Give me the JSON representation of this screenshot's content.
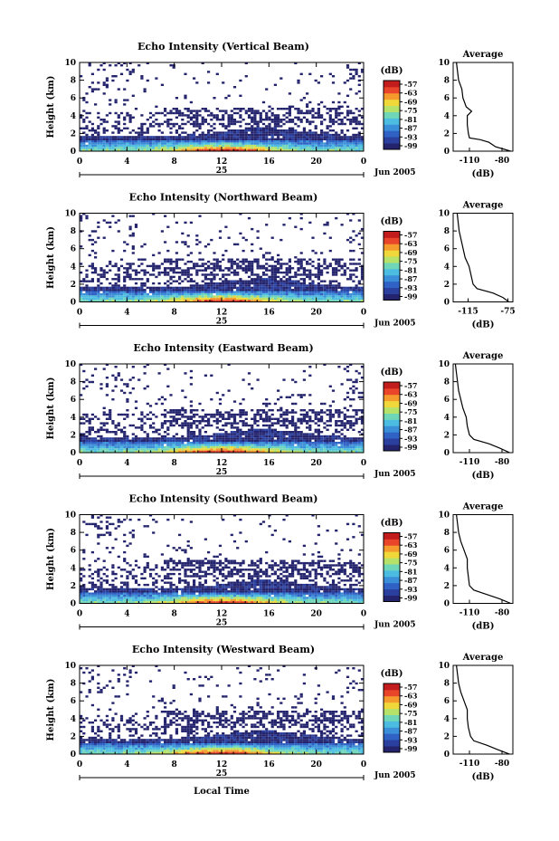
{
  "chart_data": [
    {
      "type": "heatmap",
      "title": "Echo Intensity (Vertical Beam)",
      "xlabel": "",
      "ylabel": "Height (km)",
      "xlim": [
        0,
        24
      ],
      "ylim": [
        0,
        10
      ],
      "x_ticks": [
        "0",
        "4",
        "8",
        "12",
        "16",
        "20",
        "0"
      ],
      "y_ticks": [
        "0",
        "2",
        "4",
        "6",
        "8",
        "10"
      ],
      "date_day": "25",
      "date_month": "Jun 2005",
      "colorbar": {
        "unit": "(dB)",
        "ticks": [
          "-57",
          "-63",
          "-69",
          "-75",
          "-81",
          "-87",
          "-93",
          "-99"
        ]
      },
      "avg": {
        "title": "Average",
        "xlabel": "(dB)",
        "x_ticks": [
          "-110",
          "-80"
        ],
        "xlim": [
          -125,
          -70
        ],
        "heights": [
          0,
          0.5,
          1,
          1.3,
          1.5,
          2,
          3,
          4,
          4.5,
          5,
          6,
          7,
          8,
          9,
          10
        ],
        "values": [
          -72,
          -86,
          -92,
          -100,
          -110,
          -111,
          -112,
          -112,
          -108,
          -113,
          -116,
          -117,
          -120,
          -121,
          -122
        ]
      }
    },
    {
      "type": "heatmap",
      "title": "Echo Intensity (Northward Beam)",
      "xlabel": "",
      "ylabel": "Height (km)",
      "xlim": [
        0,
        24
      ],
      "ylim": [
        0,
        10
      ],
      "x_ticks": [
        "0",
        "4",
        "8",
        "12",
        "16",
        "20",
        "0"
      ],
      "y_ticks": [
        "0",
        "2",
        "4",
        "6",
        "8",
        "10"
      ],
      "date_day": "25",
      "date_month": "Jun 2005",
      "colorbar": {
        "unit": "(dB)",
        "ticks": [
          "-57",
          "-63",
          "-69",
          "-75",
          "-81",
          "-87",
          "-93",
          "-99"
        ]
      },
      "avg": {
        "title": "Average",
        "xlabel": "(dB)",
        "x_ticks": [
          "-115",
          "-75"
        ],
        "xlim": [
          -130,
          -70
        ],
        "heights": [
          0,
          0.5,
          1,
          1.5,
          2,
          3,
          4,
          5,
          6,
          7,
          8,
          9,
          10
        ],
        "values": [
          -74,
          -80,
          -90,
          -106,
          -110,
          -112,
          -114,
          -118,
          -120,
          -122,
          -124,
          -125,
          -126
        ]
      }
    },
    {
      "type": "heatmap",
      "title": "Echo Intensity (Eastward Beam)",
      "xlabel": "",
      "ylabel": "Height (km)",
      "xlim": [
        0,
        24
      ],
      "ylim": [
        0,
        10
      ],
      "x_ticks": [
        "0",
        "4",
        "8",
        "12",
        "16",
        "20",
        "0"
      ],
      "y_ticks": [
        "0",
        "2",
        "4",
        "6",
        "8",
        "10"
      ],
      "date_day": "25",
      "date_month": "Jun 2005",
      "colorbar": {
        "unit": "(dB)",
        "ticks": [
          "-57",
          "-63",
          "-69",
          "-75",
          "-81",
          "-87",
          "-93",
          "-99"
        ]
      },
      "avg": {
        "title": "Average",
        "xlabel": "(dB)",
        "x_ticks": [
          "-110",
          "-80"
        ],
        "xlim": [
          -125,
          -70
        ],
        "heights": [
          0,
          0.5,
          1,
          1.5,
          2,
          3,
          4,
          5,
          6,
          7,
          8,
          9,
          10
        ],
        "values": [
          -73,
          -82,
          -92,
          -106,
          -110,
          -112,
          -113,
          -116,
          -118,
          -120,
          -121,
          -122,
          -123
        ]
      }
    },
    {
      "type": "heatmap",
      "title": "Echo Intensity (Southward Beam)",
      "xlabel": "",
      "ylabel": "Height (km)",
      "xlim": [
        0,
        24
      ],
      "ylim": [
        0,
        10
      ],
      "x_ticks": [
        "0",
        "4",
        "8",
        "12",
        "16",
        "20",
        "0"
      ],
      "y_ticks": [
        "0",
        "2",
        "4",
        "6",
        "8",
        "10"
      ],
      "date_day": "25",
      "date_month": "Jun 2005",
      "colorbar": {
        "unit": "(dB)",
        "ticks": [
          "-57",
          "-63",
          "-69",
          "-75",
          "-81",
          "-87",
          "-93",
          "-99"
        ]
      },
      "avg": {
        "title": "Average",
        "xlabel": "(dB)",
        "x_ticks": [
          "-110",
          "-80"
        ],
        "xlim": [
          -125,
          -70
        ],
        "heights": [
          0,
          0.5,
          1,
          1.5,
          2,
          3,
          4,
          5,
          6,
          7,
          8,
          9,
          10
        ],
        "values": [
          -72,
          -82,
          -94,
          -106,
          -110,
          -111,
          -112,
          -112,
          -115,
          -118,
          -120,
          -121,
          -122
        ]
      }
    },
    {
      "type": "heatmap",
      "title": "Echo Intensity (Westward Beam)",
      "xlabel": "Local Time",
      "ylabel": "Height (km)",
      "xlim": [
        0,
        24
      ],
      "ylim": [
        0,
        10
      ],
      "x_ticks": [
        "0",
        "4",
        "8",
        "12",
        "16",
        "20",
        "0"
      ],
      "y_ticks": [
        "0",
        "2",
        "4",
        "6",
        "8",
        "10"
      ],
      "date_day": "25",
      "date_month": "Jun 2005",
      "colorbar": {
        "unit": "(dB)",
        "ticks": [
          "-57",
          "-63",
          "-69",
          "-75",
          "-81",
          "-87",
          "-93",
          "-99"
        ]
      },
      "avg": {
        "title": "Average",
        "xlabel": "(dB)",
        "x_ticks": [
          "-110",
          "-80"
        ],
        "xlim": [
          -125,
          -70
        ],
        "heights": [
          0,
          0.5,
          1,
          1.5,
          2,
          3,
          4,
          5,
          6,
          7,
          8,
          9,
          10
        ],
        "values": [
          -73,
          -84,
          -94,
          -106,
          -109,
          -111,
          -112,
          -112,
          -115,
          -118,
          -120,
          -121,
          -122
        ]
      }
    }
  ],
  "colormap": [
    "#24246e",
    "#2a3f9e",
    "#2f62c4",
    "#3a8fd8",
    "#4cbde0",
    "#6fd6b8",
    "#b6e26a",
    "#f1d83a",
    "#f59a2c",
    "#e8452a",
    "#c21c1c"
  ]
}
